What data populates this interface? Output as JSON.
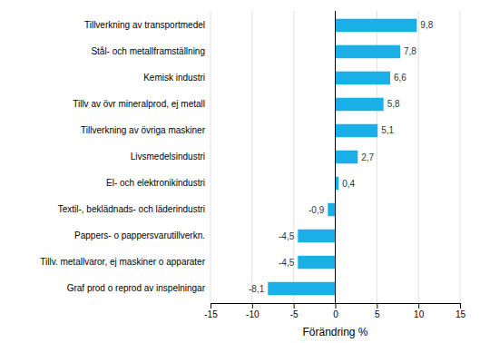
{
  "chart_data": {
    "type": "bar",
    "orientation": "horizontal",
    "categories": [
      "Graf prod o reprod av inspelningar",
      "Tillv. metallvaror, ej maskiner o apparater",
      "Pappers- o pappersvarutillverkn.",
      "Textil-, beklädnads- och läderindustri",
      "El- och elektronikindustri",
      "Livsmedelsindustri",
      "Tillverkning av övriga maskiner",
      "Tillv av övr mineralprod, ej metall",
      "Kemisk industri",
      "Stål- och metallframställning",
      "Tillverkning av transportmedel"
    ],
    "values": [
      -8.1,
      -4.5,
      -4.5,
      -0.9,
      0.4,
      2.7,
      5.1,
      5.8,
      6.6,
      7.8,
      9.8
    ],
    "value_labels": [
      "-8,1",
      "-4,5",
      "-4,5",
      "-0,9",
      "0,4",
      "2,7",
      "5,1",
      "5,8",
      "6,6",
      "7,8",
      "9,8"
    ],
    "color": "#1aafe6",
    "xlabel": "Förändring %",
    "xlim": [
      -15,
      15
    ],
    "xticks": [
      -15,
      -10,
      -5,
      0,
      5,
      10,
      15
    ],
    "grid": true,
    "data_labels": true
  }
}
